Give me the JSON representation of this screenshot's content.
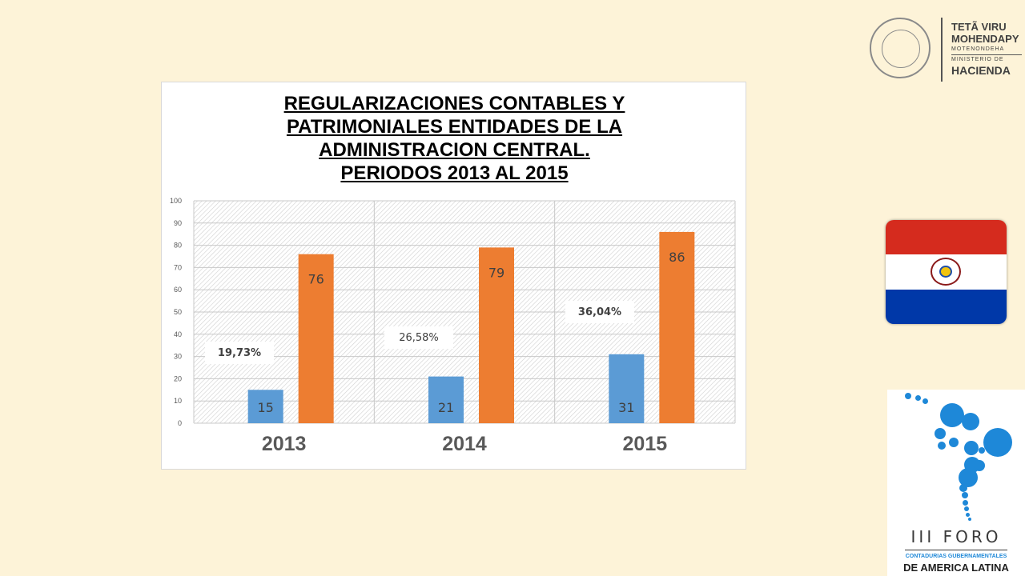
{
  "chart_data": {
    "type": "bar",
    "title_lines": [
      "REGULARIZACIONES CONTABLES Y",
      "PATRIMONIALES  ENTIDADES DE LA",
      "ADMINISTRACION CENTRAL.",
      "PERIODOS 2013 AL 2015"
    ],
    "categories": [
      "2013",
      "2014",
      "2015"
    ],
    "series": [
      {
        "values": [
          15,
          21,
          31
        ],
        "color": "#5b9bd5"
      },
      {
        "values": [
          76,
          79,
          86
        ],
        "color": "#ed7d31"
      }
    ],
    "data_labels": [
      [
        "15",
        "21",
        "31"
      ],
      [
        "76",
        "79",
        "86"
      ]
    ],
    "percent_labels": [
      "19,73%",
      "26,58%",
      "36,04%"
    ],
    "ylim": [
      0,
      100
    ],
    "yticks": [
      0,
      10,
      20,
      30,
      40,
      50,
      60,
      70,
      80,
      90,
      100
    ],
    "grid": true,
    "plot_pattern": "diagonal-hatch",
    "xlabel": "",
    "ylabel": ""
  },
  "ministry": {
    "line1": "TETÃ VIRU",
    "line2": "MOHENDAPY",
    "line3": "MOTENONDEHA",
    "line4": "MINISTERIO DE",
    "line5": "HACIENDA"
  },
  "flag": {
    "colors": [
      "#d52b1e",
      "#ffffff",
      "#0038a8"
    ]
  },
  "foro": {
    "title": "III FORO",
    "subtitle": "CONTADURIAS GUBERNAMENTALES",
    "subtitle2": "DE AMERICA LATINA",
    "accent": "#1e88d8"
  }
}
